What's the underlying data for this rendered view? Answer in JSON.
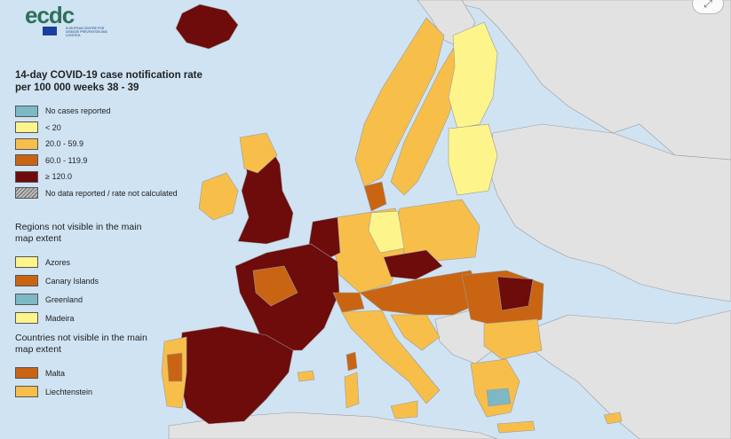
{
  "title": "14-day COVID-19 case notification rate per 100 000 weeks 38 - 39",
  "logo": {
    "text": "ecdc",
    "subtitle": "EUROPEAN CENTRE FOR DISEASE PREVENTION AND CONTROL"
  },
  "legend": {
    "items": [
      {
        "label": "No cases reported",
        "color": "#7db8c4"
      },
      {
        "label": "< 20",
        "color": "#fdf48c"
      },
      {
        "label": "20.0 - 59.9",
        "color": "#f7bf4a"
      },
      {
        "label": "60.0 - 119.9",
        "color": "#c96512"
      },
      {
        "label": "≥ 120.0",
        "color": "#6e0b0b"
      },
      {
        "label": "No data reported / rate not calculated",
        "color": "hatched"
      }
    ]
  },
  "regions_section": {
    "title": "Regions not visible in the main map extent",
    "items": [
      {
        "label": "Azores",
        "color": "#fdf48c"
      },
      {
        "label": "Canary Islands",
        "color": "#c96512"
      },
      {
        "label": "Greenland",
        "color": "#7db8c4"
      },
      {
        "label": "Madeira",
        "color": "#fdf48c"
      }
    ]
  },
  "countries_section": {
    "title": "Countries not visible in the main map extent",
    "items": [
      {
        "label": "Malta",
        "color": "#c96512"
      },
      {
        "label": "Liechtenstein",
        "color": "#f7bf4a"
      }
    ]
  },
  "map_colors": {
    "sea": "#cfe3f3",
    "non_eu_land": "#e2e2e2",
    "border": "#9a9a9a"
  },
  "controls": {
    "expand_icon": "expand-icon"
  }
}
